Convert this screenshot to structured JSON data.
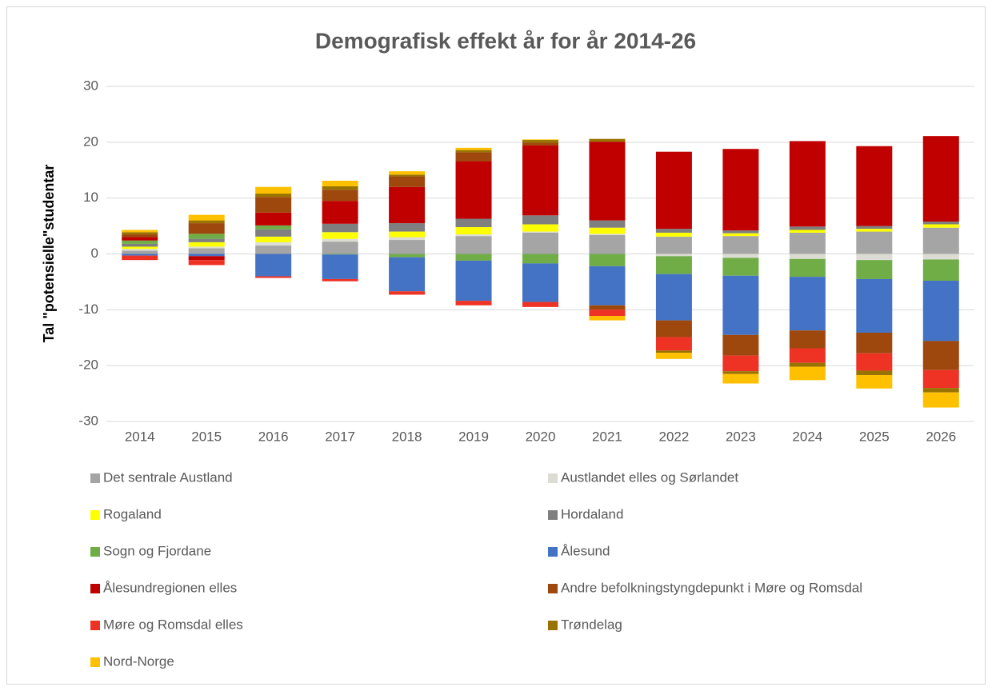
{
  "chart_data": {
    "type": "stacked_bar",
    "title": "Demografisk effekt år for år 2014-26",
    "y_label": "Tal \"potensielle\"studentar",
    "categories": [
      "2014",
      "2015",
      "2016",
      "2017",
      "2018",
      "2019",
      "2020",
      "2021",
      "2022",
      "2023",
      "2024",
      "2025",
      "2026"
    ],
    "ylim": [
      -30,
      30
    ],
    "yticks": [
      -30,
      -20,
      -10,
      0,
      10,
      20,
      30
    ],
    "grid": true,
    "legend": "bottom",
    "series": [
      {
        "name": "Det sentrale Austland",
        "color": "#a5a5a5",
        "values": [
          0.6,
          1.0,
          1.5,
          2.2,
          2.5,
          3.2,
          3.8,
          3.4,
          3.1,
          3.2,
          3.8,
          4.0,
          4.7
        ]
      },
      {
        "name": "Austlandet elles og Sørlandet",
        "color": "#dcdcd4",
        "values": [
          0.3,
          0.3,
          0.6,
          0.5,
          0.5,
          0.3,
          0.2,
          0.2,
          -0.4,
          -0.7,
          -0.9,
          -1.1,
          -1.0
        ]
      },
      {
        "name": "Rogaland",
        "color": "#ffff00",
        "values": [
          0.4,
          0.8,
          1.0,
          1.2,
          1.0,
          1.3,
          1.3,
          1.1,
          0.7,
          0.5,
          0.5,
          0.5,
          0.6
        ]
      },
      {
        "name": "Hordaland",
        "color": "#7f7f7f",
        "values": [
          0.5,
          0.6,
          1.3,
          1.5,
          1.5,
          1.5,
          1.6,
          1.3,
          0.7,
          0.5,
          0.6,
          0.5,
          0.5
        ]
      },
      {
        "name": "Sogn og Fjordane",
        "color": "#70ad47",
        "values": [
          0.6,
          0.9,
          0.7,
          -0.1,
          -0.6,
          -1.2,
          -1.7,
          -2.2,
          -3.2,
          -3.2,
          -3.2,
          -3.4,
          -3.8
        ]
      },
      {
        "name": "Ålesund",
        "color": "#4472c4",
        "values": [
          -0.3,
          -0.4,
          -4.0,
          -4.4,
          -6.1,
          -7.2,
          -6.9,
          -7.0,
          -8.3,
          -10.6,
          -9.6,
          -9.6,
          -10.8
        ]
      },
      {
        "name": "Ålesundregionen elles",
        "color": "#c00000",
        "values": [
          0.6,
          -0.7,
          2.3,
          4.1,
          6.5,
          10.3,
          12.5,
          14.1,
          13.8,
          14.6,
          15.3,
          14.3,
          15.3
        ]
      },
      {
        "name": "Andre befolkningstyngdepunkt i Møre og Romsdal",
        "color": "#9e480e",
        "values": [
          0.5,
          1.9,
          2.8,
          2.0,
          1.9,
          1.6,
          0.5,
          -0.8,
          -3.0,
          -3.7,
          -3.2,
          -3.7,
          -5.2
        ]
      },
      {
        "name": "Møre og Romsdal elles",
        "color": "#ee3224",
        "values": [
          -0.8,
          -0.9,
          -0.3,
          -0.4,
          -0.6,
          -0.8,
          -0.9,
          -1.1,
          -2.4,
          -2.8,
          -2.6,
          -3.1,
          -3.2
        ]
      },
      {
        "name": "Trøndelag",
        "color": "#997300",
        "values": [
          0.4,
          0.5,
          0.6,
          0.6,
          0.3,
          0.4,
          0.5,
          0.5,
          -0.4,
          -0.5,
          -0.7,
          -0.8,
          -0.8
        ]
      },
      {
        "name": "Nord-Norge",
        "color": "#ffc000",
        "values": [
          0.4,
          1.0,
          1.2,
          1.0,
          0.6,
          0.4,
          0.1,
          -0.8,
          -1.1,
          -1.7,
          -2.4,
          -2.4,
          -2.7
        ]
      }
    ]
  }
}
